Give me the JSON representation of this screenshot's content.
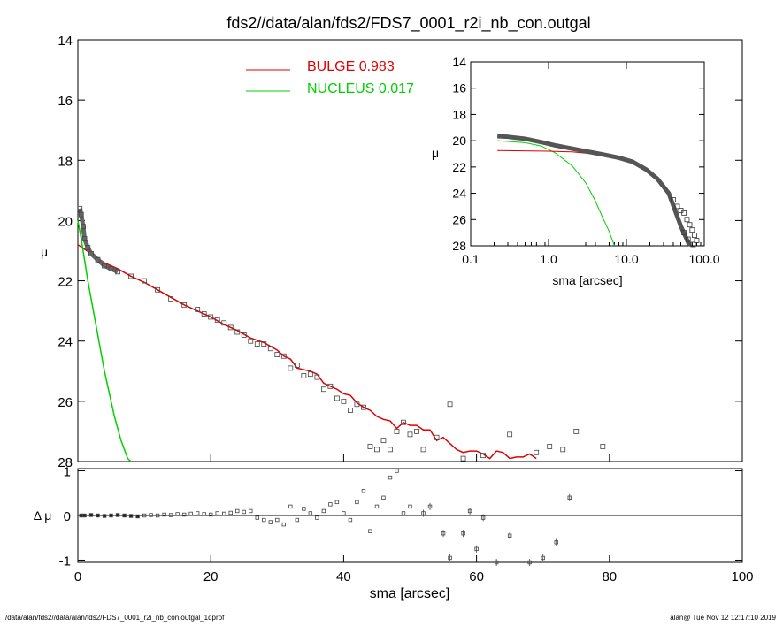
{
  "chart_data": {
    "type": "scatter",
    "title": "fds2//data/alan/fds2/FDS7_0001_r2i_nb_con.outgal",
    "footer_left": "/data/alan/fds2//data/alan/fds2/FDS7_0001_r2i_nb_con.outgal_1dprof",
    "footer_right": "alan@  Tue Nov 12 12:17:10 2019",
    "legend": [
      {
        "label": "BULGE  0.983",
        "color": "#e00000"
      },
      {
        "label": "NUCLEUS  0.017",
        "color": "#00d000"
      }
    ],
    "main": {
      "xlabel": "sma [arcsec]",
      "ylabel": "μ",
      "xlim": [
        0,
        100
      ],
      "ylim": [
        28,
        14
      ],
      "xticks": [
        "0",
        "20",
        "40",
        "60",
        "80",
        "100"
      ],
      "yticks": [
        "14",
        "16",
        "18",
        "20",
        "22",
        "24",
        "26",
        "28"
      ],
      "data_points": [
        [
          0.3,
          19.6
        ],
        [
          0.5,
          19.8
        ],
        [
          0.8,
          20.2
        ],
        [
          1.0,
          20.6
        ],
        [
          1.5,
          20.9
        ],
        [
          2,
          21.1
        ],
        [
          3,
          21.3
        ],
        [
          4,
          21.5
        ],
        [
          5,
          21.6
        ],
        [
          6,
          21.7
        ],
        [
          8,
          21.85
        ],
        [
          10,
          22.0
        ],
        [
          12,
          22.3
        ],
        [
          14,
          22.6
        ],
        [
          16,
          22.8
        ],
        [
          18,
          22.95
        ],
        [
          19,
          23.1
        ],
        [
          20,
          23.2
        ],
        [
          21,
          23.3
        ],
        [
          22,
          23.4
        ],
        [
          23,
          23.55
        ],
        [
          24,
          23.7
        ],
        [
          25,
          23.8
        ],
        [
          26,
          24.0
        ],
        [
          27,
          24.1
        ],
        [
          28,
          24.1
        ],
        [
          29,
          24.25
        ],
        [
          30,
          24.45
        ],
        [
          31,
          24.5
        ],
        [
          32,
          24.9
        ],
        [
          33,
          24.8
        ],
        [
          34,
          25.15
        ],
        [
          35,
          25.1
        ],
        [
          36,
          25.2
        ],
        [
          37,
          25.6
        ],
        [
          38,
          25.5
        ],
        [
          39,
          25.9
        ],
        [
          40,
          26.0
        ],
        [
          41,
          26.3
        ],
        [
          42,
          26.1
        ],
        [
          43,
          26.2
        ],
        [
          44,
          27.5
        ],
        [
          45,
          27.6
        ],
        [
          46,
          27.3
        ],
        [
          47,
          27.6
        ],
        [
          48,
          27.0
        ],
        [
          49,
          26.7
        ],
        [
          50,
          27.1
        ],
        [
          51,
          27.0
        ],
        [
          52,
          27.6
        ],
        [
          54,
          27.2
        ],
        [
          56,
          26.1
        ],
        [
          58,
          27.9
        ],
        [
          61,
          27.8
        ],
        [
          65,
          27.1
        ],
        [
          69,
          27.7
        ],
        [
          71,
          27.5
        ],
        [
          73,
          27.6
        ],
        [
          75,
          27.0
        ],
        [
          79,
          27.5
        ]
      ],
      "bulge": [
        [
          0,
          20.8
        ],
        [
          2,
          21.1
        ],
        [
          4,
          21.4
        ],
        [
          6,
          21.6
        ],
        [
          8,
          21.85
        ],
        [
          10,
          22.05
        ],
        [
          12,
          22.3
        ],
        [
          14,
          22.55
        ],
        [
          16,
          22.8
        ],
        [
          18,
          23.0
        ],
        [
          20,
          23.2
        ],
        [
          22,
          23.45
        ],
        [
          24,
          23.65
        ],
        [
          26,
          23.9
        ],
        [
          28,
          24.05
        ],
        [
          30,
          24.3
        ],
        [
          31,
          24.5
        ],
        [
          32,
          24.6
        ],
        [
          33,
          24.9
        ],
        [
          34,
          24.95
        ],
        [
          35,
          25.0
        ],
        [
          36,
          25.1
        ],
        [
          37,
          25.4
        ],
        [
          38,
          25.5
        ],
        [
          39,
          25.6
        ],
        [
          40,
          25.75
        ],
        [
          41,
          25.8
        ],
        [
          42,
          26.05
        ],
        [
          43,
          26.2
        ],
        [
          44,
          26.3
        ],
        [
          45,
          26.5
        ],
        [
          46,
          26.6
        ],
        [
          47,
          26.65
        ],
        [
          48,
          26.9
        ],
        [
          49,
          26.7
        ],
        [
          50,
          26.8
        ],
        [
          51,
          26.8
        ],
        [
          52,
          26.95
        ],
        [
          53,
          26.95
        ],
        [
          54,
          27.3
        ],
        [
          55,
          27.2
        ],
        [
          56,
          27.4
        ],
        [
          57,
          27.6
        ],
        [
          58,
          27.7
        ],
        [
          59,
          27.65
        ],
        [
          60,
          27.65
        ],
        [
          61,
          27.75
        ],
        [
          62,
          27.9
        ],
        [
          63,
          27.65
        ],
        [
          64,
          27.7
        ],
        [
          65,
          27.9
        ],
        [
          66,
          27.85
        ],
        [
          67,
          27.85
        ],
        [
          68,
          27.75
        ],
        [
          69,
          27.9
        ]
      ],
      "nucleus": [
        [
          0,
          20.0
        ],
        [
          0.5,
          20.6
        ],
        [
          1,
          21.3
        ],
        [
          1.5,
          22.0
        ],
        [
          2,
          22.6
        ],
        [
          2.5,
          23.2
        ],
        [
          3,
          23.8
        ],
        [
          3.5,
          24.4
        ],
        [
          4,
          25.0
        ],
        [
          4.5,
          25.5
        ],
        [
          5,
          26.0
        ],
        [
          5.5,
          26.5
        ],
        [
          6,
          26.9
        ],
        [
          6.5,
          27.3
        ],
        [
          7,
          27.6
        ],
        [
          7.5,
          27.9
        ],
        [
          8,
          28.0
        ]
      ]
    },
    "residual": {
      "ylabel": "Δ μ",
      "ylim": [
        -1.05,
        1.05
      ],
      "yticks": [
        "1",
        "0",
        "-1"
      ],
      "points": [
        [
          0.5,
          0.0
        ],
        [
          1,
          0.0
        ],
        [
          2,
          0.01
        ],
        [
          3,
          0.0
        ],
        [
          4,
          -0.01
        ],
        [
          5,
          0.0
        ],
        [
          6,
          0.01
        ],
        [
          7,
          0.0
        ],
        [
          8,
          -0.01
        ],
        [
          9,
          -0.02
        ],
        [
          10,
          0.0
        ],
        [
          11,
          0.01
        ],
        [
          12,
          0.0
        ],
        [
          13,
          0.02
        ],
        [
          14,
          0.01
        ],
        [
          15,
          0.03
        ],
        [
          16,
          0.02
        ],
        [
          17,
          0.04
        ],
        [
          18,
          0.05
        ],
        [
          19,
          0.03
        ],
        [
          20,
          0.02
        ],
        [
          21,
          0.05
        ],
        [
          22,
          0.04
        ],
        [
          23,
          0.06
        ],
        [
          24,
          0.1
        ],
        [
          25,
          0.08
        ],
        [
          26,
          0.1
        ],
        [
          27,
          -0.05
        ],
        [
          28,
          -0.1
        ],
        [
          29,
          -0.15
        ],
        [
          30,
          -0.1
        ],
        [
          31,
          -0.2
        ],
        [
          32,
          0.2
        ],
        [
          33,
          -0.1
        ],
        [
          34,
          0.15
        ],
        [
          35,
          0.05
        ],
        [
          36,
          -0.05
        ],
        [
          37,
          0.1
        ],
        [
          38,
          0.25
        ],
        [
          39,
          0.3
        ],
        [
          40,
          0.05
        ],
        [
          41,
          -0.1
        ],
        [
          42,
          0.3
        ],
        [
          43,
          0.55
        ],
        [
          44,
          -0.35
        ],
        [
          45,
          0.2
        ],
        [
          46,
          0.4
        ],
        [
          47,
          0.85
        ],
        [
          48,
          1.0
        ],
        [
          49,
          0.05
        ],
        [
          50,
          0.2
        ],
        [
          52,
          0.05
        ],
        [
          53,
          0.2
        ],
        [
          55,
          -0.4
        ],
        [
          56,
          -0.95
        ],
        [
          58,
          -0.4
        ],
        [
          59,
          0.1
        ],
        [
          60,
          -0.75
        ],
        [
          61,
          -0.05
        ],
        [
          63,
          -1.05
        ],
        [
          65,
          -0.45
        ],
        [
          68,
          -1.05
        ],
        [
          70,
          -0.95
        ],
        [
          72,
          -0.6
        ],
        [
          74,
          0.4
        ]
      ]
    },
    "inset": {
      "xlabel": "sma [arcsec]",
      "ylabel": "μ",
      "xscale": "log",
      "xlim": [
        0.1,
        100
      ],
      "ylim": [
        28,
        14
      ],
      "xticks": [
        "0.1",
        "1.0",
        "10.0",
        "100.0"
      ],
      "yticks": [
        "14",
        "16",
        "18",
        "20",
        "22",
        "24",
        "26",
        "28"
      ],
      "data_curve": [
        [
          0.22,
          19.65
        ],
        [
          0.3,
          19.7
        ],
        [
          0.5,
          19.85
        ],
        [
          0.8,
          20.1
        ],
        [
          1.2,
          20.35
        ],
        [
          2,
          20.6
        ],
        [
          3,
          20.8
        ],
        [
          5,
          21.05
        ],
        [
          8,
          21.3
        ],
        [
          12,
          21.6
        ],
        [
          18,
          22.2
        ],
        [
          25,
          22.9
        ],
        [
          35,
          24.0
        ],
        [
          50,
          26.5
        ],
        [
          65,
          28.0
        ]
      ],
      "scatter": [
        [
          40,
          24.5
        ],
        [
          45,
          25.0
        ],
        [
          50,
          25.3
        ],
        [
          55,
          25.5
        ],
        [
          60,
          26.0
        ],
        [
          65,
          26.4
        ],
        [
          70,
          26.8
        ],
        [
          75,
          27.2
        ],
        [
          80,
          27.6
        ],
        [
          55,
          27.0
        ],
        [
          62,
          27.5
        ],
        [
          72,
          27.9
        ]
      ],
      "bulge": [
        [
          0.22,
          20.75
        ],
        [
          1.0,
          20.8
        ],
        [
          2.0,
          20.85
        ],
        [
          3,
          20.95
        ],
        [
          5,
          21.1
        ],
        [
          8,
          21.35
        ],
        [
          12,
          21.6
        ],
        [
          18,
          22.2
        ],
        [
          25,
          22.9
        ],
        [
          35,
          24.0
        ],
        [
          50,
          26.3
        ],
        [
          65,
          28.0
        ]
      ],
      "nucleus": [
        [
          0.22,
          20.0
        ],
        [
          0.5,
          20.15
        ],
        [
          0.8,
          20.4
        ],
        [
          1.2,
          20.9
        ],
        [
          2,
          21.9
        ],
        [
          3,
          23.2
        ],
        [
          4,
          24.6
        ],
        [
          5,
          25.9
        ],
        [
          6,
          26.9
        ],
        [
          7,
          28.0
        ]
      ]
    }
  }
}
